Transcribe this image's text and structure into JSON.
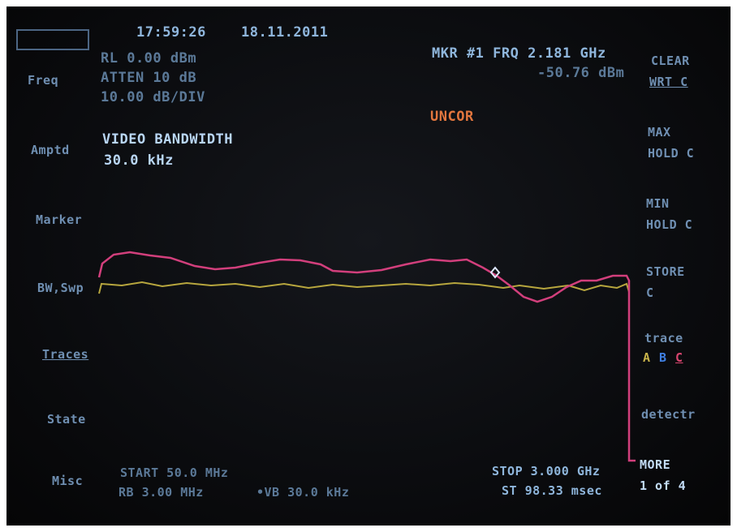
{
  "header": {
    "time": "17:59:26",
    "date": "18.11.2011",
    "reference_level": "RL 0.00 dBm",
    "attenuation": "ATTEN 10 dB",
    "scale": "10.00 dB/DIV"
  },
  "marker": {
    "frequency": "MKR #1 FRQ 2.181 GHz",
    "amplitude": "-50.76 dBm"
  },
  "status": "UNCOR",
  "active_function": {
    "name": "VIDEO BANDWIDTH",
    "value": "30.0 kHz"
  },
  "left_menu": [
    "Freq",
    "Amptd",
    "Marker",
    "BW,Swp",
    "Traces",
    "State",
    "Misc"
  ],
  "right_menu": {
    "clear_write": [
      "CLEAR",
      "WRT C"
    ],
    "max_hold": [
      "MAX",
      "HOLD C"
    ],
    "min_hold": [
      "MIN",
      "HOLD C"
    ],
    "store": [
      "STORE",
      "C"
    ],
    "trace": {
      "label": "trace",
      "letters": [
        "A",
        "B",
        "C"
      ]
    },
    "detector": "detectr",
    "more": [
      "MORE",
      "1 of 4"
    ]
  },
  "footer": {
    "start": "START 50.0 MHz",
    "resolution_bandwidth": "RB 3.00 MHz",
    "video_bandwidth": "•VB 30.0 kHz",
    "stop": "STOP 3.000 GHz",
    "sweep_time": "ST 98.33 msec"
  }
}
